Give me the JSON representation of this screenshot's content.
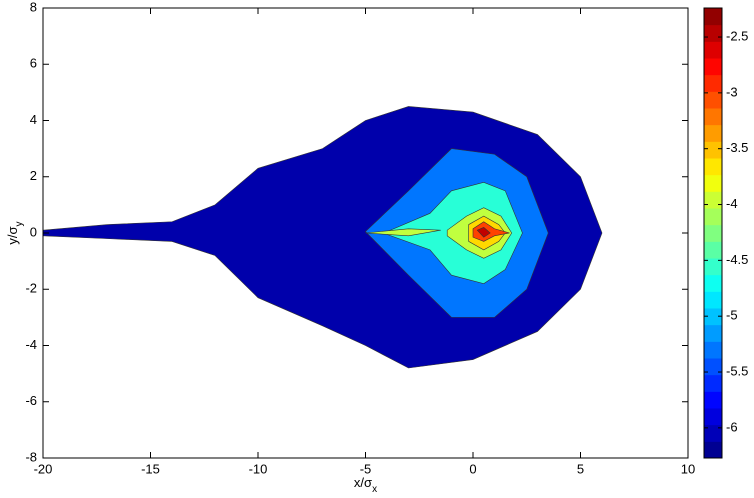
{
  "chart_data": {
    "type": "contour",
    "colormap": "jet",
    "xlabel": {
      "text": "x/σ",
      "sub": "x"
    },
    "ylabel": {
      "text": "y/σ",
      "sub": "y"
    },
    "xlim": [
      -20,
      10
    ],
    "xticks": [
      -20,
      -15,
      -10,
      -5,
      0,
      5,
      10
    ],
    "ylim": [
      -8,
      8
    ],
    "yticks": [
      -8,
      -6,
      -4,
      -2,
      0,
      2,
      4,
      6,
      8
    ],
    "clim": [
      -6.27,
      -2.24
    ],
    "cticks": [
      -2.5,
      -3,
      -3.5,
      -4,
      -4.5,
      -5,
      -5.5,
      -6
    ],
    "colorbar_levels": 27,
    "regions": [
      {
        "level": -6.1,
        "x": [
          -20,
          -17,
          -14,
          -12,
          -10,
          -7,
          -5,
          -3,
          0,
          3,
          5,
          6,
          5,
          3,
          0,
          -3,
          -5,
          -7,
          -10,
          -12,
          -14,
          -17,
          -20
        ],
        "y": [
          0.1,
          0.3,
          0.4,
          1,
          2.3,
          3,
          4,
          4.5,
          4.3,
          3.5,
          2,
          0,
          -2,
          -3.5,
          -4.5,
          -4.8,
          -4,
          -3.3,
          -2.3,
          -0.8,
          -0.3,
          -0.2,
          -0.1
        ]
      },
      {
        "level": -5.3,
        "x": [
          -5,
          -3,
          -1,
          1,
          2.5,
          3.5,
          2.5,
          1,
          -1,
          -3
        ],
        "y": [
          0.05,
          1.5,
          3,
          2.8,
          2,
          0,
          -2,
          -3,
          -3,
          -1.5
        ]
      },
      {
        "level": -4.6,
        "x": [
          -4,
          -2,
          -1,
          0.5,
          1.5,
          2.3,
          1.5,
          0.5,
          -1,
          -2,
          -4
        ],
        "y": [
          0.05,
          0.7,
          1.5,
          1.8,
          1.5,
          0,
          -1.3,
          -1.8,
          -1.5,
          -0.6,
          -0.05
        ]
      },
      {
        "level": -4.0,
        "x": [
          -1.2,
          -0.3,
          0.5,
          1.3,
          1.8,
          1.3,
          0.5,
          -0.3,
          -1.2
        ],
        "y": [
          0.1,
          0.6,
          0.9,
          0.6,
          0,
          -0.6,
          -0.9,
          -0.6,
          -0.1
        ]
      },
      {
        "level": -4.0,
        "x": [
          -5,
          -3,
          -1.5,
          -3
        ],
        "y": [
          0,
          0.15,
          0.1,
          -0.1
        ]
      },
      {
        "level": -3.6,
        "x": [
          -0.2,
          0.5,
          1.2,
          1.5,
          1.2,
          0.5,
          -0.2
        ],
        "y": [
          0.3,
          0.6,
          0.3,
          0,
          -0.3,
          -0.6,
          -0.3
        ]
      },
      {
        "level": -3.0,
        "x": [
          0,
          0.5,
          1,
          1.7,
          1,
          0.5,
          0
        ],
        "y": [
          0.15,
          0.4,
          0.15,
          0,
          -0.1,
          -0.3,
          -0.15
        ]
      },
      {
        "level": -2.5,
        "x": [
          0.2,
          0.5,
          0.8,
          0.5
        ],
        "y": [
          0.1,
          0.2,
          0,
          -0.15
        ]
      }
    ]
  }
}
